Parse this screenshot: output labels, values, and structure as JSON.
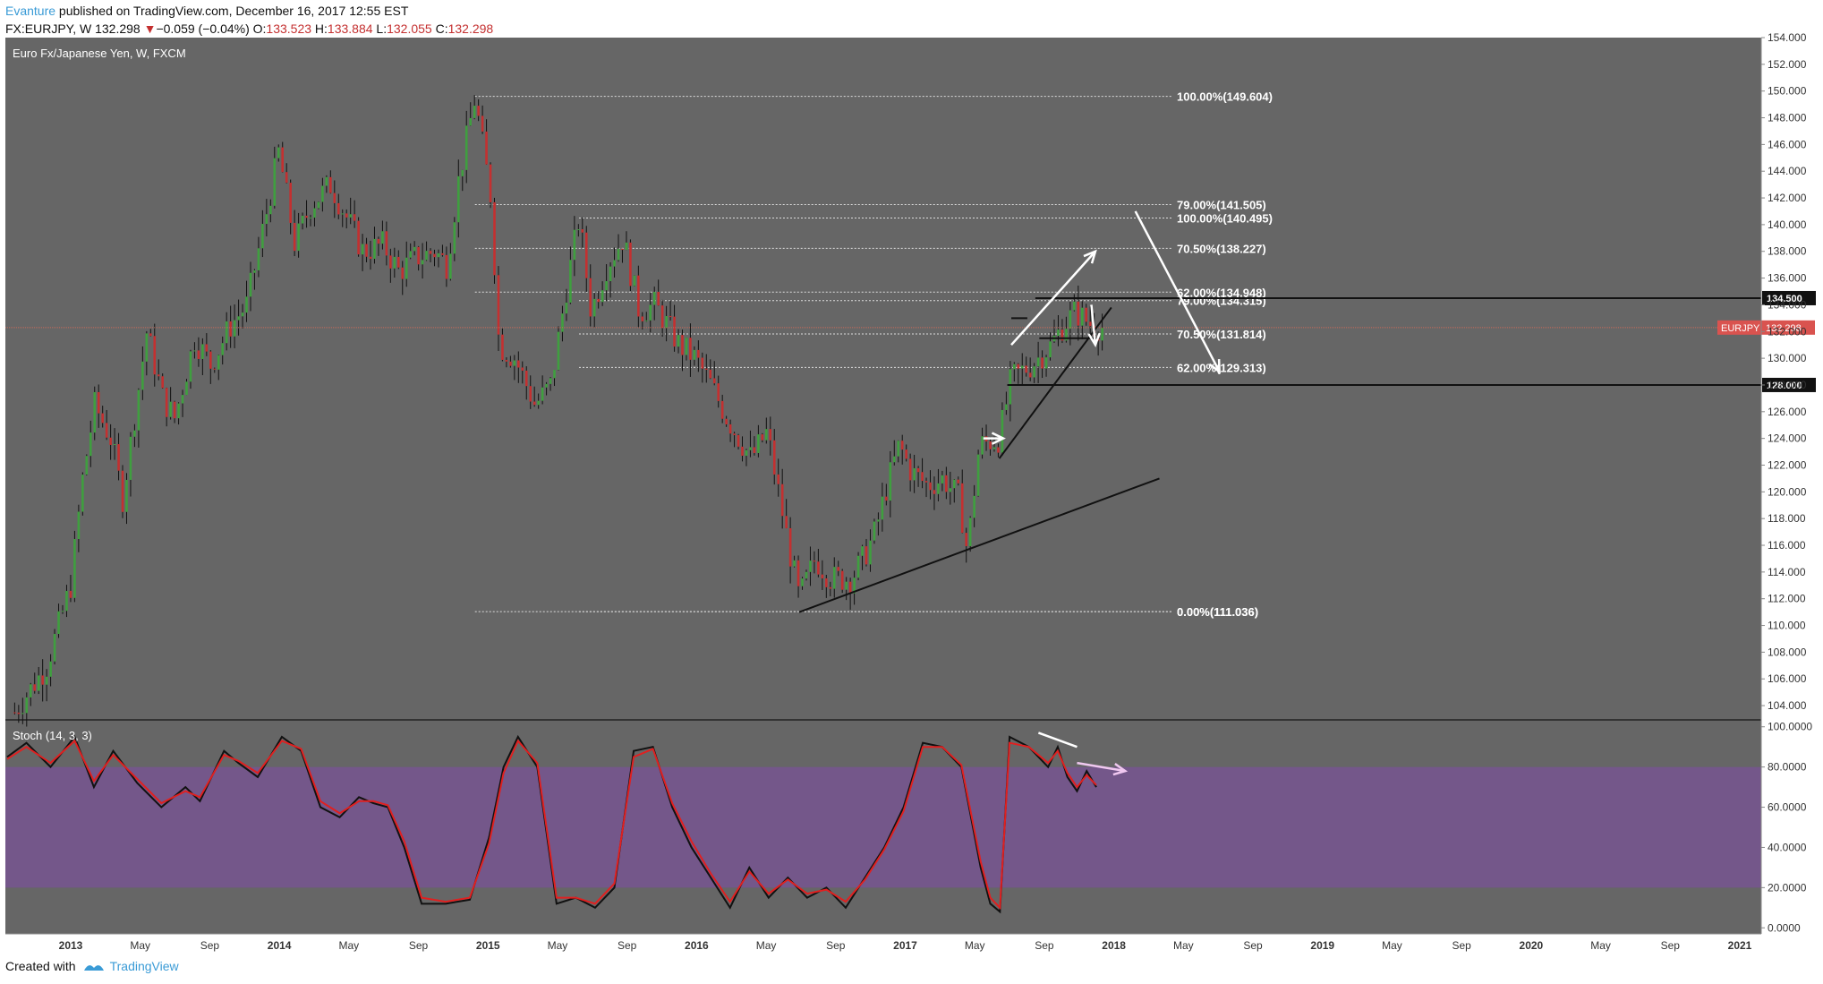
{
  "header": {
    "author": "Evanture",
    "published": " published on TradingView.com, December 16, 2017 12:55 EST",
    "symbol": "FX:EURJPY, W",
    "price": "132.298",
    "change_arrow": "▼",
    "change": "−0.059 (−0.04%)",
    "o_label": "O:",
    "o": "133.523",
    "h_label": "H:",
    "h": "133.884",
    "l_label": "L:",
    "l": "132.055",
    "c_label": "C:",
    "c": "132.298"
  },
  "chart_data": [
    {
      "type": "candlestick",
      "title": "Euro Fx/Japanese Yen, W, FXCM",
      "ylim": [
        103,
        154
      ],
      "y_ticks": [
        "104.000",
        "106.000",
        "108.000",
        "110.000",
        "112.000",
        "114.000",
        "116.000",
        "118.000",
        "120.000",
        "122.000",
        "124.000",
        "126.000",
        "128.000",
        "130.000",
        "132.000",
        "134.000",
        "136.000",
        "138.000",
        "140.000",
        "142.000",
        "144.000",
        "146.000",
        "148.000",
        "150.000",
        "152.000",
        "154.000"
      ],
      "x_ticks": [
        "2013",
        "May",
        "Sep",
        "2014",
        "May",
        "Sep",
        "2015",
        "May",
        "Sep",
        "2016",
        "May",
        "Sep",
        "2017",
        "May",
        "Sep",
        "2018",
        "May",
        "Sep",
        "2019",
        "May",
        "Sep",
        "2020",
        "May",
        "Sep",
        "2021"
      ],
      "price_path": [
        [
          "2012-09-24",
          103.5
        ],
        [
          "2012-11-19",
          107
        ],
        [
          "2012-12-31",
          113
        ],
        [
          "2013-01-21",
          121
        ],
        [
          "2013-02-11",
          126.5
        ],
        [
          "2013-03-11",
          124
        ],
        [
          "2013-04-01",
          119.5
        ],
        [
          "2013-05-13",
          132
        ],
        [
          "2013-06-10",
          127
        ],
        [
          "2013-07-01",
          125.5
        ],
        [
          "2013-08-05",
          131.5
        ],
        [
          "2013-09-02",
          129.5
        ],
        [
          "2013-10-07",
          132.5
        ],
        [
          "2013-11-04",
          134
        ],
        [
          "2013-12-09",
          141
        ],
        [
          "2013-12-30",
          145.5
        ],
        [
          "2014-01-27",
          138.5
        ],
        [
          "2014-02-24",
          141.5
        ],
        [
          "2014-03-31",
          143
        ],
        [
          "2014-04-28",
          140.5
        ],
        [
          "2014-05-26",
          138
        ],
        [
          "2014-06-30",
          138.5
        ],
        [
          "2014-07-28",
          136.5
        ],
        [
          "2014-08-25",
          137.5
        ],
        [
          "2014-09-29",
          138
        ],
        [
          "2014-10-20",
          137
        ],
        [
          "2014-11-10",
          143.5
        ],
        [
          "2014-12-08",
          149.5
        ],
        [
          "2015-01-05",
          142
        ],
        [
          "2015-01-19",
          131
        ],
        [
          "2015-02-16",
          130
        ],
        [
          "2015-03-23",
          126.5
        ],
        [
          "2015-04-20",
          128
        ],
        [
          "2015-05-18",
          135.5
        ],
        [
          "2015-06-08",
          140.5
        ],
        [
          "2015-06-29",
          133.5
        ],
        [
          "2015-07-27",
          137
        ],
        [
          "2015-08-24",
          139
        ],
        [
          "2015-09-21",
          133.5
        ],
        [
          "2015-10-19",
          134
        ],
        [
          "2015-11-30",
          131
        ],
        [
          "2015-12-28",
          130
        ],
        [
          "2016-01-25",
          128
        ],
        [
          "2016-02-22",
          125.5
        ],
        [
          "2016-04-04",
          122.5
        ],
        [
          "2016-05-02",
          124.5
        ],
        [
          "2016-06-06",
          116.5
        ],
        [
          "2016-06-27",
          112
        ],
        [
          "2016-07-25",
          115
        ],
        [
          "2016-08-22",
          113.5
        ],
        [
          "2016-09-26",
          113.5
        ],
        [
          "2016-10-17",
          115
        ],
        [
          "2016-11-07",
          117
        ],
        [
          "2016-11-28",
          120.5
        ],
        [
          "2016-12-19",
          123.5
        ],
        [
          "2017-01-09",
          121.5
        ],
        [
          "2017-02-06",
          120.5
        ],
        [
          "2017-03-06",
          121
        ],
        [
          "2017-04-03",
          119.5
        ],
        [
          "2017-04-17",
          115.5
        ],
        [
          "2017-05-08",
          123.5
        ],
        [
          "2017-06-12",
          124
        ],
        [
          "2017-07-03",
          128.5
        ],
        [
          "2017-08-07",
          129.5
        ],
        [
          "2017-09-11",
          131
        ],
        [
          "2017-10-02",
          132.5
        ],
        [
          "2017-10-23",
          133.5
        ],
        [
          "2017-11-20",
          132.5
        ],
        [
          "2017-12-11",
          132.3
        ]
      ],
      "fib_retracement_1": [
        {
          "label": "100.00%(149.604)",
          "value": 149.604
        },
        {
          "label": "79.00%(141.505)",
          "value": 141.505
        },
        {
          "label": "70.50%(138.227)",
          "value": 138.227
        },
        {
          "label": "62.00%(134.948)",
          "value": 134.948
        },
        {
          "label": "0.00%(111.036)",
          "value": 111.036
        }
      ],
      "fib_retracement_2": [
        {
          "label": "100.00%(140.495)",
          "value": 140.495
        },
        {
          "label": "79.00%(134.315)",
          "value": 134.315
        },
        {
          "label": "70.50%(131.814)",
          "value": 131.814
        },
        {
          "label": "62.00%(129.313)",
          "value": 129.313
        },
        {
          "label": "0.00%(111.036)",
          "value": 111.036
        }
      ],
      "horizontal_levels": [
        {
          "label": "134.500",
          "value": 134.5
        },
        {
          "label": "128.000",
          "value": 128.0
        }
      ],
      "price_tag": {
        "symbol": "EURJPY",
        "value": "132.298"
      },
      "trendlines": [
        {
          "from": [
            "2016-06-27",
            111.0
          ],
          "to": [
            "2018-03-19",
            121.0
          ]
        },
        {
          "from": [
            "2017-06-12",
            122.5
          ],
          "to": [
            "2017-12-25",
            133.8
          ]
        },
        {
          "from": [
            "2017-07-03",
            133.0
          ],
          "to": [
            "2017-07-31",
            133.0
          ]
        },
        {
          "from": [
            "2017-08-21",
            131.5
          ],
          "to": [
            "2017-12-04",
            131.5
          ]
        }
      ],
      "annotations": [
        {
          "type": "arrow",
          "from": [
            "2017-07-03",
            131.0
          ],
          "to": [
            "2017-11-27",
            138.0
          ]
        },
        {
          "type": "arrow",
          "from": [
            "2017-05-15",
            124.0
          ],
          "to": [
            "2017-06-19",
            124.0
          ]
        },
        {
          "type": "arrow",
          "from": [
            "2017-11-20",
            134.0
          ],
          "to": [
            "2017-11-27",
            131.0
          ]
        },
        {
          "type": "arrow",
          "from": [
            "2018-02-05",
            141.0
          ],
          "to": [
            "2018-07-02",
            129.0
          ]
        }
      ]
    },
    {
      "type": "line",
      "title": "Stoch (14, 3, 3)",
      "ylim": [
        -3,
        103
      ],
      "y_ticks": [
        "0.0000",
        "20.0000",
        "40.0000",
        "60.0000",
        "80.0000",
        "100.0000"
      ],
      "band": [
        20,
        80
      ],
      "series": [
        {
          "values": [
            [
              0,
              85
            ],
            [
              20,
              92
            ],
            [
              45,
              80
            ],
            [
              70,
              95
            ],
            [
              90,
              70
            ],
            [
              110,
              88
            ],
            [
              135,
              72
            ],
            [
              160,
              60
            ],
            [
              185,
              70
            ],
            [
              200,
              63
            ],
            [
              225,
              88
            ],
            [
              240,
              82
            ],
            [
              260,
              75
            ],
            [
              285,
              95
            ],
            [
              305,
              88
            ],
            [
              325,
              60
            ],
            [
              345,
              55
            ],
            [
              365,
              65
            ],
            [
              380,
              62
            ],
            [
              395,
              60
            ],
            [
              412,
              40
            ],
            [
              430,
              12
            ],
            [
              455,
              12
            ],
            [
              480,
              14
            ],
            [
              500,
              45
            ],
            [
              515,
              80
            ],
            [
              530,
              95
            ],
            [
              550,
              80
            ],
            [
              570,
              12
            ],
            [
              590,
              15
            ],
            [
              610,
              10
            ],
            [
              630,
              20
            ],
            [
              650,
              88
            ],
            [
              670,
              90
            ],
            [
              690,
              60
            ],
            [
              710,
              40
            ],
            [
              730,
              25
            ],
            [
              750,
              10
            ],
            [
              770,
              30
            ],
            [
              790,
              15
            ],
            [
              810,
              25
            ],
            [
              830,
              15
            ],
            [
              850,
              20
            ],
            [
              870,
              10
            ],
            [
              890,
              25
            ],
            [
              910,
              40
            ],
            [
              930,
              60
            ],
            [
              950,
              92
            ],
            [
              970,
              90
            ],
            [
              990,
              80
            ],
            [
              1010,
              30
            ],
            [
              1020,
              12
            ],
            [
              1030,
              8
            ],
            [
              1040,
              95
            ],
            [
              1060,
              90
            ],
            [
              1080,
              80
            ],
            [
              1090,
              90
            ],
            [
              1100,
              75
            ],
            [
              1110,
              68
            ],
            [
              1120,
              78
            ],
            [
              1130,
              70
            ]
          ]
        },
        {
          "values": [
            [
              0,
              84
            ],
            [
              20,
              90
            ],
            [
              45,
              82
            ],
            [
              70,
              93
            ],
            [
              90,
              73
            ],
            [
              110,
              86
            ],
            [
              135,
              74
            ],
            [
              160,
              62
            ],
            [
              185,
              68
            ],
            [
              200,
              65
            ],
            [
              225,
              86
            ],
            [
              240,
              83
            ],
            [
              260,
              77
            ],
            [
              285,
              93
            ],
            [
              305,
              89
            ],
            [
              325,
              63
            ],
            [
              345,
              57
            ],
            [
              365,
              63
            ],
            [
              380,
              63
            ],
            [
              395,
              61
            ],
            [
              412,
              43
            ],
            [
              430,
              15
            ],
            [
              455,
              13
            ],
            [
              480,
              15
            ],
            [
              500,
              42
            ],
            [
              515,
              77
            ],
            [
              530,
              93
            ],
            [
              550,
              82
            ],
            [
              570,
              15
            ],
            [
              590,
              15
            ],
            [
              610,
              12
            ],
            [
              630,
              22
            ],
            [
              650,
              85
            ],
            [
              670,
              89
            ],
            [
              690,
              62
            ],
            [
              710,
              43
            ],
            [
              730,
              27
            ],
            [
              750,
              13
            ],
            [
              770,
              28
            ],
            [
              790,
              17
            ],
            [
              810,
              24
            ],
            [
              830,
              17
            ],
            [
              850,
              19
            ],
            [
              870,
              13
            ],
            [
              890,
              24
            ],
            [
              910,
              39
            ],
            [
              930,
              58
            ],
            [
              950,
              90
            ],
            [
              970,
              90
            ],
            [
              990,
              81
            ],
            [
              1010,
              33
            ],
            [
              1020,
              15
            ],
            [
              1030,
              10
            ],
            [
              1040,
              92
            ],
            [
              1060,
              90
            ],
            [
              1080,
              82
            ],
            [
              1090,
              88
            ],
            [
              1100,
              77
            ],
            [
              1110,
              70
            ],
            [
              1120,
              76
            ],
            [
              1130,
              71
            ]
          ]
        }
      ],
      "annotations": [
        {
          "type": "line",
          "from": [
            1070,
            97
          ],
          "to": [
            1110,
            90
          ]
        },
        {
          "type": "arrow",
          "from": [
            1110,
            82
          ],
          "to": [
            1160,
            78
          ]
        }
      ]
    }
  ],
  "footer": {
    "created_with": "Created with",
    "brand": "TradingView"
  },
  "colors": {
    "bg": "#666666",
    "band": "#74578a",
    "up": "#3f9f3f",
    "down": "#c43030"
  }
}
